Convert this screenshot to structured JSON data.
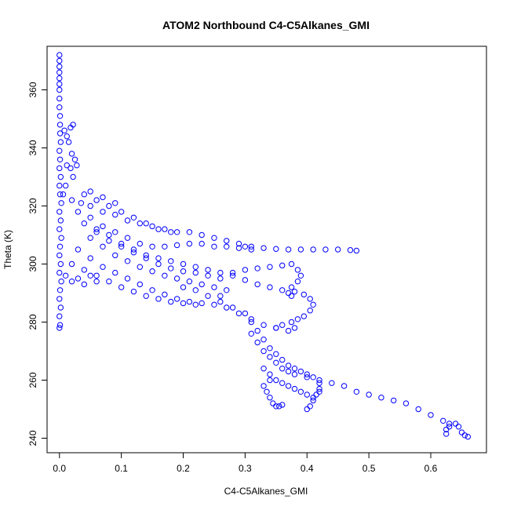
{
  "chart_data": {
    "type": "scatter",
    "title": "ATOM2 Northbound C4-C5Alkanes_GMI",
    "xlabel": "C4-C5Alkanes_GMI",
    "ylabel": "Theta (K)",
    "xlim": [
      -0.02,
      0.69
    ],
    "ylim": [
      235,
      375
    ],
    "xticks": [
      0.0,
      0.1,
      0.2,
      0.3,
      0.4,
      0.5,
      0.6
    ],
    "xtick_labels": [
      "0.0",
      "0.1",
      "0.2",
      "0.3",
      "0.4",
      "0.5",
      "0.6"
    ],
    "yticks": [
      240,
      260,
      280,
      300,
      320,
      340,
      360
    ],
    "ytick_labels": [
      "240",
      "260",
      "280",
      "300",
      "320",
      "340",
      "360"
    ],
    "grid": false,
    "marker": "open-circle",
    "color": "#0000ff",
    "series": [
      {
        "points": [
          [
            0.0,
            372
          ],
          [
            0.0,
            370
          ],
          [
            0.0,
            368
          ],
          [
            0.0,
            366
          ],
          [
            0.0,
            364
          ],
          [
            0.0,
            362
          ],
          [
            0.0,
            360
          ],
          [
            0.0,
            357
          ],
          [
            0.0,
            354
          ],
          [
            0.001,
            351
          ],
          [
            0.001,
            348
          ],
          [
            0.001,
            345
          ],
          [
            0.002,
            342
          ],
          [
            0.0,
            339
          ],
          [
            0.001,
            336
          ],
          [
            0.0,
            333
          ],
          [
            0.002,
            330
          ],
          [
            0.0,
            327
          ],
          [
            0.001,
            324
          ],
          [
            0.003,
            321
          ],
          [
            0.0,
            318
          ],
          [
            0.002,
            315
          ],
          [
            0.0,
            312
          ],
          [
            0.003,
            309
          ],
          [
            0.001,
            306
          ],
          [
            0.0,
            303
          ],
          [
            0.002,
            300
          ],
          [
            0.0,
            297
          ],
          [
            0.003,
            294
          ],
          [
            0.001,
            291
          ],
          [
            0.0,
            288
          ],
          [
            0.002,
            285
          ],
          [
            0.0,
            282
          ],
          [
            0.001,
            279
          ],
          [
            0.0,
            278
          ],
          [
            0.008,
            346
          ],
          [
            0.012,
            344
          ],
          [
            0.018,
            347
          ],
          [
            0.022,
            348
          ],
          [
            0.015,
            342
          ],
          [
            0.02,
            338
          ],
          [
            0.025,
            336
          ],
          [
            0.018,
            333
          ],
          [
            0.022,
            330
          ],
          [
            0.01,
            327
          ],
          [
            0.006,
            324
          ],
          [
            0.012,
            334
          ],
          [
            0.028,
            334
          ],
          [
            0.02,
            322
          ],
          [
            0.035,
            321
          ],
          [
            0.05,
            320
          ],
          [
            0.07,
            318
          ],
          [
            0.09,
            317
          ],
          [
            0.11,
            315
          ],
          [
            0.13,
            314
          ],
          [
            0.15,
            313
          ],
          [
            0.17,
            312
          ],
          [
            0.19,
            311
          ],
          [
            0.21,
            311
          ],
          [
            0.23,
            310
          ],
          [
            0.25,
            309
          ],
          [
            0.27,
            308
          ],
          [
            0.29,
            307
          ],
          [
            0.31,
            306
          ],
          [
            0.33,
            305.5
          ],
          [
            0.35,
            305.2
          ],
          [
            0.37,
            305
          ],
          [
            0.39,
            305
          ],
          [
            0.41,
            305
          ],
          [
            0.43,
            305
          ],
          [
            0.45,
            305
          ],
          [
            0.47,
            304.8
          ],
          [
            0.48,
            304.6
          ],
          [
            0.03,
            318
          ],
          [
            0.05,
            316
          ],
          [
            0.07,
            313
          ],
          [
            0.09,
            311
          ],
          [
            0.11,
            309
          ],
          [
            0.13,
            307
          ],
          [
            0.15,
            306
          ],
          [
            0.17,
            306
          ],
          [
            0.19,
            306.5
          ],
          [
            0.21,
            307
          ],
          [
            0.23,
            307
          ],
          [
            0.25,
            306
          ],
          [
            0.27,
            306
          ],
          [
            0.29,
            305.5
          ],
          [
            0.31,
            305
          ],
          [
            0.3,
            306
          ],
          [
            0.04,
            314
          ],
          [
            0.06,
            311
          ],
          [
            0.08,
            308
          ],
          [
            0.1,
            306
          ],
          [
            0.12,
            304
          ],
          [
            0.14,
            302
          ],
          [
            0.16,
            300
          ],
          [
            0.18,
            298.5
          ],
          [
            0.2,
            297.5
          ],
          [
            0.22,
            297
          ],
          [
            0.24,
            296
          ],
          [
            0.26,
            295
          ],
          [
            0.28,
            297
          ],
          [
            0.3,
            298
          ],
          [
            0.32,
            298.5
          ],
          [
            0.34,
            299
          ],
          [
            0.36,
            299.5
          ],
          [
            0.375,
            300
          ],
          [
            0.385,
            298
          ],
          [
            0.39,
            296
          ],
          [
            0.385,
            294
          ],
          [
            0.375,
            292
          ],
          [
            0.37,
            290
          ],
          [
            0.375,
            289
          ],
          [
            0.05,
            309
          ],
          [
            0.07,
            306
          ],
          [
            0.09,
            303
          ],
          [
            0.11,
            301
          ],
          [
            0.13,
            299
          ],
          [
            0.15,
            297.5
          ],
          [
            0.17,
            296
          ],
          [
            0.19,
            295
          ],
          [
            0.21,
            294
          ],
          [
            0.23,
            293
          ],
          [
            0.25,
            292
          ],
          [
            0.27,
            291
          ],
          [
            0.26,
            289
          ],
          [
            0.03,
            305
          ],
          [
            0.05,
            302
          ],
          [
            0.07,
            299
          ],
          [
            0.09,
            297
          ],
          [
            0.11,
            295
          ],
          [
            0.13,
            293
          ],
          [
            0.15,
            291
          ],
          [
            0.17,
            289.5
          ],
          [
            0.19,
            288
          ],
          [
            0.21,
            287
          ],
          [
            0.23,
            286.5
          ],
          [
            0.25,
            286
          ],
          [
            0.27,
            285
          ],
          [
            0.29,
            283
          ],
          [
            0.31,
            281
          ],
          [
            0.33,
            279
          ],
          [
            0.35,
            278
          ],
          [
            0.37,
            277
          ],
          [
            0.38,
            278
          ],
          [
            0.02,
            300
          ],
          [
            0.04,
            298
          ],
          [
            0.06,
            296
          ],
          [
            0.08,
            294
          ],
          [
            0.1,
            292
          ],
          [
            0.12,
            290.5
          ],
          [
            0.14,
            289
          ],
          [
            0.16,
            288
          ],
          [
            0.18,
            287
          ],
          [
            0.2,
            286.5
          ],
          [
            0.22,
            286
          ],
          [
            0.06,
            312
          ],
          [
            0.08,
            310
          ],
          [
            0.1,
            307
          ],
          [
            0.12,
            305
          ],
          [
            0.14,
            303
          ],
          [
            0.16,
            302
          ],
          [
            0.18,
            301
          ],
          [
            0.2,
            300
          ],
          [
            0.22,
            299
          ],
          [
            0.24,
            298
          ],
          [
            0.26,
            297
          ],
          [
            0.28,
            296
          ],
          [
            0.3,
            294.5
          ],
          [
            0.32,
            293
          ],
          [
            0.34,
            292
          ],
          [
            0.36,
            291
          ],
          [
            0.38,
            290.5
          ],
          [
            0.395,
            289.5
          ],
          [
            0.405,
            288
          ],
          [
            0.41,
            286
          ],
          [
            0.405,
            284
          ],
          [
            0.395,
            282
          ],
          [
            0.385,
            281
          ],
          [
            0.375,
            280
          ],
          [
            0.36,
            279
          ],
          [
            0.35,
            278
          ],
          [
            0.2,
            292
          ],
          [
            0.22,
            291
          ],
          [
            0.24,
            289
          ],
          [
            0.26,
            287
          ],
          [
            0.28,
            285
          ],
          [
            0.3,
            283
          ],
          [
            0.31,
            280
          ],
          [
            0.32,
            277
          ],
          [
            0.33,
            274
          ],
          [
            0.34,
            271
          ],
          [
            0.35,
            269
          ],
          [
            0.36,
            267
          ],
          [
            0.37,
            265
          ],
          [
            0.38,
            264
          ],
          [
            0.39,
            263
          ],
          [
            0.4,
            262
          ],
          [
            0.41,
            261
          ],
          [
            0.42,
            259
          ],
          [
            0.42,
            257
          ],
          [
            0.415,
            255
          ],
          [
            0.41,
            253
          ],
          [
            0.405,
            251
          ],
          [
            0.4,
            250
          ],
          [
            0.31,
            276
          ],
          [
            0.32,
            273
          ],
          [
            0.33,
            270
          ],
          [
            0.34,
            268
          ],
          [
            0.35,
            266
          ],
          [
            0.36,
            264
          ],
          [
            0.37,
            263
          ],
          [
            0.38,
            262
          ],
          [
            0.4,
            261
          ],
          [
            0.42,
            260
          ],
          [
            0.44,
            259
          ],
          [
            0.46,
            258
          ],
          [
            0.48,
            256
          ],
          [
            0.5,
            255
          ],
          [
            0.52,
            254
          ],
          [
            0.54,
            253
          ],
          [
            0.56,
            252
          ],
          [
            0.58,
            250
          ],
          [
            0.6,
            248
          ],
          [
            0.62,
            246
          ],
          [
            0.63,
            245
          ],
          [
            0.64,
            245
          ],
          [
            0.645,
            244
          ],
          [
            0.65,
            242
          ],
          [
            0.655,
            241
          ],
          [
            0.66,
            240.5
          ],
          [
            0.625,
            243
          ],
          [
            0.625,
            241.5
          ],
          [
            0.63,
            244
          ],
          [
            0.33,
            264
          ],
          [
            0.34,
            262
          ],
          [
            0.35,
            260
          ],
          [
            0.36,
            259
          ],
          [
            0.37,
            258
          ],
          [
            0.38,
            257
          ],
          [
            0.39,
            256
          ],
          [
            0.4,
            255
          ],
          [
            0.41,
            254
          ],
          [
            0.42,
            256
          ],
          [
            0.34,
            260
          ],
          [
            0.33,
            258
          ],
          [
            0.335,
            256
          ],
          [
            0.34,
            254
          ],
          [
            0.345,
            252
          ],
          [
            0.35,
            251
          ],
          [
            0.355,
            251
          ],
          [
            0.36,
            251.5
          ],
          [
            0.04,
            324
          ],
          [
            0.06,
            322
          ],
          [
            0.08,
            320
          ],
          [
            0.1,
            318
          ],
          [
            0.12,
            316
          ],
          [
            0.14,
            314
          ],
          [
            0.16,
            312
          ],
          [
            0.18,
            311
          ],
          [
            0.05,
            325
          ],
          [
            0.07,
            323
          ],
          [
            0.09,
            321
          ],
          [
            0.01,
            296
          ],
          [
            0.02,
            294
          ],
          [
            0.03,
            295
          ],
          [
            0.04,
            293
          ],
          [
            0.05,
            296
          ],
          [
            0.06,
            294
          ]
        ]
      }
    ]
  }
}
